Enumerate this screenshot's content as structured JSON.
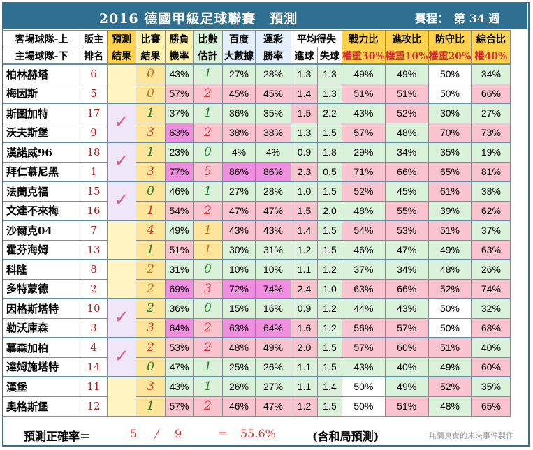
{
  "title": "2016 德國甲級足球聯賽　預測",
  "round_label": "賽程：　第 34 週",
  "headers": {
    "team_top": "客場球隊-上",
    "team_bottom": "主場球隊-下",
    "rank_top": "販主",
    "rank_bottom": "排名",
    "pred_top": "預測",
    "pred_bottom": "結果",
    "result_top": "比賽",
    "result_bottom": "結果",
    "winprob_top": "勝負",
    "winprob_bottom": "機率",
    "score_top": "比數",
    "score_bottom": "估計",
    "baidu_top": "百度",
    "baidu_bottom": "大數據",
    "lottery_top": "運彩",
    "lottery_bottom": "勝率",
    "avg_top": "平均得失",
    "avg_for": "進球",
    "avg_against": "失球",
    "power": "戰力比",
    "power_weight": "權重30%",
    "attack": "進攻比",
    "attack_weight": "權重10%",
    "defense": "防守比",
    "defense_weight": "權重20%",
    "overall": "綜合比",
    "overall_weight": "權40%"
  },
  "colors": {
    "title_bg": "#2f6f8f",
    "win_green": "#d9f2d9",
    "loss_pink": "#f9c4d0",
    "strong_magenta": "#f08fe0",
    "check_pink": "#e05a9a",
    "accent_red": "#e03131"
  },
  "icons": {
    "check": "✓"
  },
  "chart_data": {
    "type": "table",
    "title": "2016 德國甲級足球聯賽　預測",
    "round": "第 34 週",
    "columns": [
      "客場球隊-上 / 主場球隊-下",
      "販主排名",
      "預測結果",
      "比賽結果",
      "勝負機率",
      "比數估計",
      "百度大數據",
      "運彩勝率",
      "進球",
      "失球",
      "戰力比",
      "進攻比",
      "防守比",
      "綜合比"
    ],
    "matches": [
      {
        "check": false,
        "teams": [
          {
            "name": "柏林赫塔",
            "rank": "6",
            "result": "0",
            "prob": "43%",
            "est": "1",
            "baidu": "27%",
            "lottery": "28%",
            "gf": "1.3",
            "ga": "1.3",
            "power": "49%",
            "attack": "49%",
            "defense": "50%",
            "overall": "34%"
          },
          {
            "name": "梅因斯",
            "rank": "5",
            "result": "0",
            "prob": "57%",
            "est": "2",
            "baidu": "45%",
            "lottery": "45%",
            "gf": "1.4",
            "ga": "1.3",
            "power": "51%",
            "attack": "51%",
            "defense": "50%",
            "overall": "66%"
          }
        ]
      },
      {
        "check": true,
        "teams": [
          {
            "name": "斯圖加特",
            "rank": "17",
            "result": "1",
            "prob": "37%",
            "est": "1",
            "baidu": "36%",
            "lottery": "35%",
            "gf": "1.5",
            "ga": "2.2",
            "power": "43%",
            "attack": "52%",
            "defense": "30%",
            "overall": "27%"
          },
          {
            "name": "沃夫斯堡",
            "rank": "9",
            "result": "3",
            "prob": "63%",
            "est": "2",
            "baidu": "38%",
            "lottery": "38%",
            "gf": "1.3",
            "ga": "1.5",
            "power": "57%",
            "attack": "48%",
            "defense": "70%",
            "overall": "73%"
          }
        ]
      },
      {
        "check": true,
        "teams": [
          {
            "name": "漢諾威96",
            "rank": "18",
            "result": "1",
            "prob": "23%",
            "est": "0",
            "baidu": "4%",
            "lottery": "4%",
            "gf": "0.9",
            "ga": "1.8",
            "power": "29%",
            "attack": "34%",
            "defense": "35%",
            "overall": "19%"
          },
          {
            "name": "拜仁慕尼黑",
            "rank": "1",
            "result": "3",
            "prob": "77%",
            "est": "5",
            "baidu": "86%",
            "lottery": "86%",
            "gf": "2.3",
            "ga": "0.5",
            "power": "71%",
            "attack": "66%",
            "defense": "65%",
            "overall": "81%"
          }
        ]
      },
      {
        "check": true,
        "teams": [
          {
            "name": "法蘭克福",
            "rank": "15",
            "result": "0",
            "prob": "46%",
            "est": "1",
            "baidu": "27%",
            "lottery": "28%",
            "gf": "1.0",
            "ga": "1.5",
            "power": "52%",
            "attack": "45%",
            "defense": "61%",
            "overall": "38%"
          },
          {
            "name": "文達不來梅",
            "rank": "16",
            "result": "1",
            "prob": "54%",
            "est": "2",
            "baidu": "47%",
            "lottery": "47%",
            "gf": "1.5",
            "ga": "2.0",
            "power": "48%",
            "attack": "55%",
            "defense": "39%",
            "overall": "62%"
          }
        ]
      },
      {
        "check": false,
        "teams": [
          {
            "name": "沙爾克04",
            "rank": "7",
            "result": "4",
            "prob": "49%",
            "est": "1",
            "baidu": "43%",
            "lottery": "43%",
            "gf": "1.4",
            "ga": "1.5",
            "power": "54%",
            "attack": "53%",
            "defense": "51%",
            "overall": "37%"
          },
          {
            "name": "霍芬海姆",
            "rank": "13",
            "result": "1",
            "prob": "51%",
            "est": "1",
            "baidu": "30%",
            "lottery": "31%",
            "gf": "1.2",
            "ga": "1.5",
            "power": "46%",
            "attack": "47%",
            "defense": "49%",
            "overall": "63%"
          }
        ]
      },
      {
        "check": false,
        "teams": [
          {
            "name": "科隆",
            "rank": "8",
            "result": "2",
            "prob": "31%",
            "est": "0",
            "baidu": "10%",
            "lottery": "10%",
            "gf": "1.1",
            "ga": "1.2",
            "power": "37%",
            "attack": "34%",
            "defense": "48%",
            "overall": "26%"
          },
          {
            "name": "多特蒙德",
            "rank": "2",
            "result": "2",
            "prob": "69%",
            "est": "3",
            "baidu": "72%",
            "lottery": "74%",
            "gf": "2.4",
            "ga": "1.0",
            "power": "63%",
            "attack": "66%",
            "defense": "52%",
            "overall": "74%"
          }
        ]
      },
      {
        "check": true,
        "teams": [
          {
            "name": "因格斯塔特",
            "rank": "10",
            "result": "2",
            "prob": "36%",
            "est": "0",
            "baidu": "15%",
            "lottery": "16%",
            "gf": "0.9",
            "ga": "1.2",
            "power": "44%",
            "attack": "43%",
            "defense": "50%",
            "overall": "32%"
          },
          {
            "name": "勒沃庫森",
            "rank": "3",
            "result": "3",
            "prob": "64%",
            "est": "2",
            "baidu": "63%",
            "lottery": "64%",
            "gf": "1.6",
            "ga": "1.2",
            "power": "56%",
            "attack": "57%",
            "defense": "50%",
            "overall": "68%"
          }
        ]
      },
      {
        "check": true,
        "teams": [
          {
            "name": "慕森加柏",
            "rank": "4",
            "result": "2",
            "prob": "53%",
            "est": "2",
            "baidu": "48%",
            "lottery": "49%",
            "gf": "2.0",
            "ga": "1.5",
            "power": "57%",
            "attack": "60%",
            "defense": "51%",
            "overall": "40%"
          },
          {
            "name": "達姆施塔特",
            "rank": "14",
            "result": "0",
            "prob": "47%",
            "est": "1",
            "baidu": "25%",
            "lottery": "26%",
            "gf": "1.1",
            "ga": "1.5",
            "power": "43%",
            "attack": "40%",
            "defense": "49%",
            "overall": "60%"
          }
        ]
      },
      {
        "check": false,
        "teams": [
          {
            "name": "漢堡",
            "rank": "11",
            "result": "3",
            "prob": "43%",
            "est": "1",
            "baidu": "26%",
            "lottery": "27%",
            "gf": "1.1",
            "ga": "1.4",
            "power": "50%",
            "attack": "49%",
            "defense": "52%",
            "overall": "35%"
          },
          {
            "name": "奧格斯堡",
            "rank": "12",
            "result": "1",
            "prob": "57%",
            "est": "2",
            "baidu": "46%",
            "lottery": "47%",
            "gf": "1.2",
            "ga": "1.5",
            "power": "50%",
            "attack": "51%",
            "defense": "48%",
            "overall": "65%"
          }
        ]
      }
    ]
  },
  "footer": {
    "label": "預測正確率＝",
    "correct": "5",
    "slash": "/",
    "total": "9",
    "equals": "=",
    "rate": "55.6%",
    "note": "(含和局預測)",
    "credit": "無情真實的未來事件製作"
  }
}
